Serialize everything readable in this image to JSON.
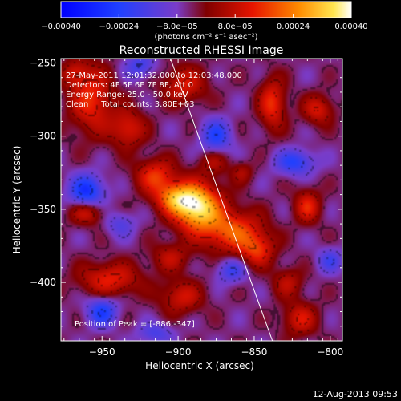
{
  "chart_data": {
    "type": "heatmap",
    "title": "Reconstructed RHESSI Image",
    "xlabel": "Heliocentric X (arcsec)",
    "ylabel": "Heliocentric Y (arcsec)",
    "xlim": [
      -977,
      -792
    ],
    "ylim": [
      -440,
      -247
    ],
    "xticks": [
      -950,
      -900,
      -850,
      -800
    ],
    "yticks": [
      -250,
      -300,
      -350,
      -400
    ],
    "xtick_labels": [
      "−950",
      "−900",
      "−850",
      "−800"
    ],
    "ytick_labels": [
      "−250",
      "−300",
      "−350",
      "−400"
    ],
    "colorbar": {
      "range": [
        -0.0004,
        0.0004
      ],
      "ticks": [
        -0.0004,
        -0.00024,
        -8e-05,
        8e-05,
        0.00024,
        0.0004
      ],
      "tick_labels": [
        "−0.00040",
        "−0.00024",
        "−8.0e−05",
        "8.0e−05",
        "0.00024",
        "0.00040"
      ],
      "unit_label": "(photons cm⁻² s⁻¹ asec⁻²)"
    },
    "info_lines": [
      "27-May-2011 12:01:32.000 to 12:03:48.000",
      "Detectors: 4F 5F 6F 7F 8F, Att 0",
      "Energy Range: 25.0 - 50.0 keV",
      "Clean     Total counts: 3.80E+03"
    ],
    "peak_label": "Position of Peak = [-886,-347]",
    "peak": {
      "x": -886,
      "y": -347,
      "value": 0.0004
    },
    "limb_line": [
      [
        -905,
        -247
      ],
      [
        -838,
        -440
      ]
    ],
    "sources": [
      {
        "x": -888,
        "y": -348,
        "sx": 11,
        "sy": 11,
        "a": 0.00042
      },
      {
        "x": -903,
        "y": -342,
        "sx": 9,
        "sy": 7,
        "a": 0.00022
      },
      {
        "x": -865,
        "y": -365,
        "sx": 14,
        "sy": 10,
        "a": 0.00024
      },
      {
        "x": -848,
        "y": -378,
        "sx": 8,
        "sy": 8,
        "a": 0.00018
      },
      {
        "x": -915,
        "y": -327,
        "sx": 9,
        "sy": 8,
        "a": 0.0002
      },
      {
        "x": -933,
        "y": -295,
        "sx": 8,
        "sy": 9,
        "a": 0.00017
      },
      {
        "x": -957,
        "y": -275,
        "sx": 10,
        "sy": 16,
        "a": 0.0002
      },
      {
        "x": -896,
        "y": -265,
        "sx": 10,
        "sy": 9,
        "a": 0.00016
      },
      {
        "x": -838,
        "y": -278,
        "sx": 6,
        "sy": 12,
        "a": 0.0002
      },
      {
        "x": -808,
        "y": -282,
        "sx": 7,
        "sy": 7,
        "a": 0.00016
      },
      {
        "x": -815,
        "y": -348,
        "sx": 6,
        "sy": 8,
        "a": 0.00018
      },
      {
        "x": -960,
        "y": -352,
        "sx": 8,
        "sy": 6,
        "a": 0.00016
      },
      {
        "x": -945,
        "y": -398,
        "sx": 14,
        "sy": 8,
        "a": 0.00018
      },
      {
        "x": -898,
        "y": -410,
        "sx": 10,
        "sy": 8,
        "a": 0.00015
      },
      {
        "x": -820,
        "y": -425,
        "sx": 8,
        "sy": 8,
        "a": 0.00016
      },
      {
        "x": -877,
        "y": -318,
        "sx": 7,
        "sy": 6,
        "a": 0.0001
      },
      {
        "x": -905,
        "y": -383,
        "sx": 9,
        "sy": 7,
        "a": 0.00012
      },
      {
        "x": -828,
        "y": -400,
        "sx": 7,
        "sy": 7,
        "a": 0.00012
      },
      {
        "x": -858,
        "y": -325,
        "sx": 5,
        "sy": 5,
        "a": 0.0001
      },
      {
        "x": -968,
        "y": -257,
        "sx": 6,
        "sy": 6,
        "a": 0.00012
      },
      {
        "x": -960,
        "y": -338,
        "sx": 8,
        "sy": 8,
        "a": -0.00024
      },
      {
        "x": -950,
        "y": -420,
        "sx": 7,
        "sy": 7,
        "a": -0.0002
      },
      {
        "x": -875,
        "y": -300,
        "sx": 7,
        "sy": 8,
        "a": -0.00018
      },
      {
        "x": -823,
        "y": -318,
        "sx": 9,
        "sy": 6,
        "a": -0.00018
      },
      {
        "x": -865,
        "y": -392,
        "sx": 7,
        "sy": 6,
        "a": -0.00014
      },
      {
        "x": -925,
        "y": -252,
        "sx": 7,
        "sy": 6,
        "a": -0.00014
      },
      {
        "x": -800,
        "y": -385,
        "sx": 6,
        "sy": 6,
        "a": -0.00012
      },
      {
        "x": -915,
        "y": -435,
        "sx": 8,
        "sy": 5,
        "a": -0.00012
      },
      {
        "x": -938,
        "y": -360,
        "sx": 7,
        "sy": 6,
        "a": -0.0001
      }
    ]
  },
  "footer": {
    "timestamp": "12-Aug-2013 09:53"
  }
}
